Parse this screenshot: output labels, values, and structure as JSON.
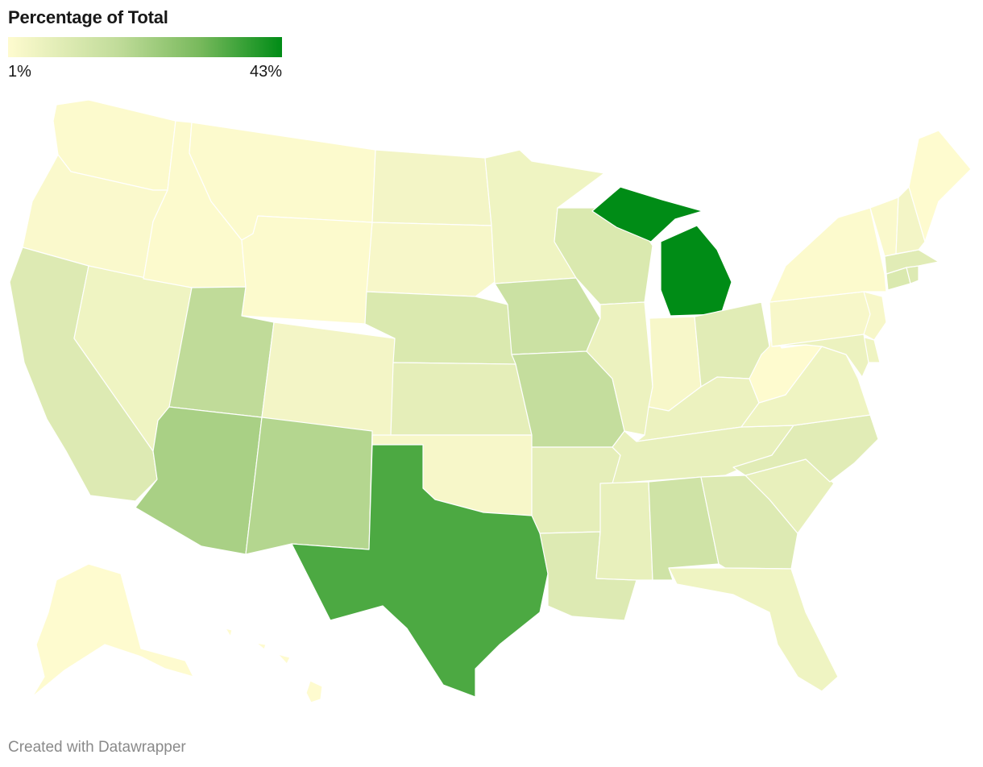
{
  "legend": {
    "title": "Percentage of Total",
    "min_label": "1%",
    "max_label": "43%",
    "min_value": 1,
    "max_value": 43,
    "colors": [
      "#fefbcf",
      "#c1dc9a",
      "#78b95c",
      "#008c16"
    ]
  },
  "credit": "Created with Datawrapper",
  "map_data": {
    "type": "choropleth",
    "region": "United States",
    "states": [
      {
        "abbr": "WA",
        "value": 1.5
      },
      {
        "abbr": "OR",
        "value": 2
      },
      {
        "abbr": "CA",
        "value": 10
      },
      {
        "abbr": "NV",
        "value": 5
      },
      {
        "abbr": "ID",
        "value": 1.5
      },
      {
        "abbr": "MT",
        "value": 1.5
      },
      {
        "abbr": "WY",
        "value": 1.5
      },
      {
        "abbr": "UT",
        "value": 18
      },
      {
        "abbr": "AZ",
        "value": 22
      },
      {
        "abbr": "CO",
        "value": 4
      },
      {
        "abbr": "NM",
        "value": 20
      },
      {
        "abbr": "ND",
        "value": 4
      },
      {
        "abbr": "SD",
        "value": 3
      },
      {
        "abbr": "NE",
        "value": 11
      },
      {
        "abbr": "KS",
        "value": 8
      },
      {
        "abbr": "OK",
        "value": 3
      },
      {
        "abbr": "TX",
        "value": 35
      },
      {
        "abbr": "MN",
        "value": 5
      },
      {
        "abbr": "IA",
        "value": 15
      },
      {
        "abbr": "MO",
        "value": 17
      },
      {
        "abbr": "AR",
        "value": 8
      },
      {
        "abbr": "LA",
        "value": 10
      },
      {
        "abbr": "WI",
        "value": 11
      },
      {
        "abbr": "IL",
        "value": 6
      },
      {
        "abbr": "MI",
        "value": 43
      },
      {
        "abbr": "IN",
        "value": 3
      },
      {
        "abbr": "OH",
        "value": 9
      },
      {
        "abbr": "KY",
        "value": 6
      },
      {
        "abbr": "TN",
        "value": 7
      },
      {
        "abbr": "MS",
        "value": 7
      },
      {
        "abbr": "AL",
        "value": 14
      },
      {
        "abbr": "GA",
        "value": 10
      },
      {
        "abbr": "FL",
        "value": 5
      },
      {
        "abbr": "SC",
        "value": 7
      },
      {
        "abbr": "NC",
        "value": 9
      },
      {
        "abbr": "VA",
        "value": 5
      },
      {
        "abbr": "WV",
        "value": 1
      },
      {
        "abbr": "PA",
        "value": 3
      },
      {
        "abbr": "NY",
        "value": 1.5
      },
      {
        "abbr": "NJ",
        "value": 3
      },
      {
        "abbr": "DE",
        "value": 5
      },
      {
        "abbr": "MD",
        "value": 6
      },
      {
        "abbr": "CT",
        "value": 11
      },
      {
        "abbr": "RI",
        "value": 10
      },
      {
        "abbr": "MA",
        "value": 9
      },
      {
        "abbr": "VT",
        "value": 2
      },
      {
        "abbr": "NH",
        "value": 4
      },
      {
        "abbr": "ME",
        "value": 1
      },
      {
        "abbr": "AK",
        "value": 1
      },
      {
        "abbr": "HI",
        "value": 1
      }
    ]
  }
}
